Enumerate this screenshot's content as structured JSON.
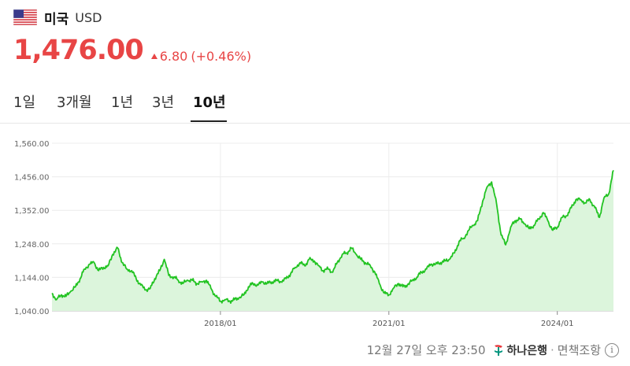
{
  "header": {
    "country": "미국",
    "currency": "USD"
  },
  "quote": {
    "price": "1,476.00",
    "change": "6.80",
    "change_pct": "(+0.46%)",
    "direction": "up",
    "color": "#e84545"
  },
  "tabs": [
    {
      "label": "1일",
      "active": false
    },
    {
      "label": "3개월",
      "active": false
    },
    {
      "label": "1년",
      "active": false
    },
    {
      "label": "3년",
      "active": false
    },
    {
      "label": "10년",
      "active": true
    }
  ],
  "footer": {
    "timestamp": "12월 27일 오후 23:50",
    "bank": "하나은행",
    "separator": "·",
    "disclaimer": "면책조항",
    "info_symbol": "i"
  },
  "chart_data": {
    "type": "area",
    "y_ticks": [
      "1,560.00",
      "1,456.00",
      "1,352.00",
      "1,248.00",
      "1,144.00",
      "1,040.00"
    ],
    "ylim": [
      1040,
      1560
    ],
    "x_ticks": [
      {
        "label": "2018/01",
        "x": 2018.0
      },
      {
        "label": "2021/01",
        "x": 2021.0
      },
      {
        "label": "2024/01",
        "x": 2024.0
      }
    ],
    "xlim": [
      2015.0,
      2025.0
    ],
    "line_color": "#22c322",
    "fill_color": "#dcf5dc",
    "grid": true,
    "series": [
      {
        "x": [
          2015.0,
          2015.08,
          2015.17,
          2015.25,
          2015.33,
          2015.42,
          2015.5,
          2015.58,
          2015.67,
          2015.75,
          2015.83,
          2015.92,
          2016.0,
          2016.08,
          2016.17,
          2016.25,
          2016.33,
          2016.42,
          2016.5,
          2016.58,
          2016.67,
          2016.75,
          2016.83,
          2016.92,
          2017.0,
          2017.08,
          2017.17,
          2017.25,
          2017.33,
          2017.42,
          2017.5,
          2017.58,
          2017.67,
          2017.75,
          2017.83,
          2017.92,
          2018.0,
          2018.08,
          2018.17,
          2018.25,
          2018.33,
          2018.42,
          2018.5,
          2018.58,
          2018.67,
          2018.75,
          2018.83,
          2018.92,
          2019.0,
          2019.08,
          2019.17,
          2019.25,
          2019.33,
          2019.42,
          2019.5,
          2019.58,
          2019.67,
          2019.75,
          2019.83,
          2019.92,
          2020.0,
          2020.08,
          2020.17,
          2020.25,
          2020.33,
          2020.42,
          2020.5,
          2020.58,
          2020.67,
          2020.75,
          2020.83,
          2020.92,
          2021.0,
          2021.08,
          2021.17,
          2021.25,
          2021.33,
          2021.42,
          2021.5,
          2021.58,
          2021.67,
          2021.75,
          2021.83,
          2021.92,
          2022.0,
          2022.08,
          2022.17,
          2022.25,
          2022.33,
          2022.42,
          2022.5,
          2022.58,
          2022.67,
          2022.75,
          2022.83,
          2022.92,
          2023.0,
          2023.08,
          2023.17,
          2023.25,
          2023.33,
          2023.42,
          2023.5,
          2023.58,
          2023.67,
          2023.75,
          2023.83,
          2023.92,
          2024.0,
          2024.08,
          2024.17,
          2024.25,
          2024.33,
          2024.42,
          2024.5,
          2024.58,
          2024.67,
          2024.75,
          2024.83,
          2024.92,
          2025.0
        ],
        "y": [
          1095,
          1075,
          1090,
          1085,
          1100,
          1115,
          1140,
          1170,
          1185,
          1190,
          1165,
          1175,
          1180,
          1215,
          1235,
          1190,
          1170,
          1165,
          1140,
          1120,
          1105,
          1110,
          1140,
          1165,
          1200,
          1150,
          1145,
          1135,
          1125,
          1135,
          1135,
          1125,
          1130,
          1135,
          1110,
          1085,
          1070,
          1075,
          1070,
          1075,
          1080,
          1090,
          1115,
          1125,
          1120,
          1130,
          1125,
          1130,
          1135,
          1130,
          1140,
          1155,
          1175,
          1190,
          1180,
          1200,
          1195,
          1180,
          1165,
          1170,
          1160,
          1190,
          1215,
          1220,
          1235,
          1215,
          1200,
          1190,
          1180,
          1160,
          1125,
          1095,
          1090,
          1110,
          1125,
          1115,
          1120,
          1135,
          1145,
          1160,
          1170,
          1185,
          1185,
          1190,
          1195,
          1200,
          1220,
          1255,
          1265,
          1290,
          1305,
          1320,
          1380,
          1425,
          1440,
          1370,
          1275,
          1245,
          1300,
          1320,
          1325,
          1310,
          1295,
          1305,
          1325,
          1345,
          1320,
          1290,
          1300,
          1330,
          1335,
          1360,
          1385,
          1385,
          1375,
          1385,
          1360,
          1330,
          1390,
          1405,
          1476
        ]
      }
    ]
  }
}
